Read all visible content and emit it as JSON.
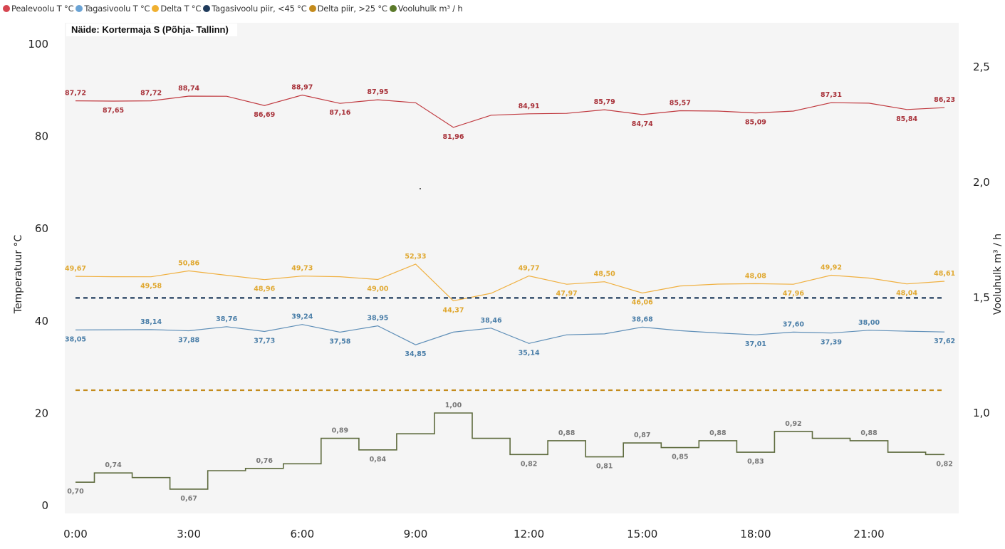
{
  "legend": [
    {
      "label": "Pealevoolu T °C",
      "color": "#d64550"
    },
    {
      "label": "Tagasivoolu T °C",
      "color": "#6aa3d5"
    },
    {
      "label": "Delta T °C",
      "color": "#f0b030"
    },
    {
      "label": "Tagasivoolu piir, <45 °C",
      "color": "#1f3b5c"
    },
    {
      "label": "Delta piir, >25 °C",
      "color": "#c48b1c"
    },
    {
      "label": "Vooluhulk m³ / h",
      "color": "#5b7a2a"
    }
  ],
  "chart_data": {
    "type": "line",
    "title": "Näide: Kortermaja S (Põhja- Tallinn)",
    "xlabel": "",
    "ylabel": "Temperatuur °C",
    "y2label": "Vooluhulk m³ / h",
    "x": [
      "0:00",
      "1:00",
      "2:00",
      "3:00",
      "4:00",
      "5:00",
      "6:00",
      "7:00",
      "8:00",
      "9:00",
      "10:00",
      "11:00",
      "12:00",
      "13:00",
      "14:00",
      "15:00",
      "16:00",
      "17:00",
      "18:00",
      "19:00",
      "20:00",
      "21:00",
      "22:00",
      "23:00"
    ],
    "xticks": [
      "0:00",
      "3:00",
      "6:00",
      "9:00",
      "12:00",
      "15:00",
      "18:00",
      "21:00"
    ],
    "ylim": [
      0,
      100
    ],
    "yticks": [
      0,
      20,
      40,
      60,
      80,
      100
    ],
    "y2lim": [
      0.57,
      2.58
    ],
    "y2ticks": [
      1.0,
      1.5,
      2.0,
      2.5
    ],
    "y2tick_labels": [
      "1,0",
      "1,5",
      "2,0",
      "2,5"
    ],
    "grid": false,
    "legend_position": "top-left",
    "series": [
      {
        "name": "Pealevoolu T °C",
        "axis": "left",
        "color": "#c0393f",
        "label_color": "#a8323a",
        "style": "line",
        "values": [
          87.72,
          87.65,
          87.72,
          88.74,
          88.7,
          86.69,
          88.97,
          87.16,
          87.95,
          87.3,
          81.96,
          84.6,
          84.91,
          85.0,
          85.79,
          84.74,
          85.57,
          85.5,
          85.09,
          85.5,
          87.31,
          87.2,
          85.84,
          86.23
        ],
        "labels": [
          {
            "i": 0,
            "text": "87,72",
            "pos": "above"
          },
          {
            "i": 1,
            "text": "87,65",
            "pos": "below"
          },
          {
            "i": 2,
            "text": "87,72",
            "pos": "above"
          },
          {
            "i": 3,
            "text": "88,74",
            "pos": "above"
          },
          {
            "i": 5,
            "text": "86,69",
            "pos": "below"
          },
          {
            "i": 6,
            "text": "88,97",
            "pos": "above"
          },
          {
            "i": 7,
            "text": "87,16",
            "pos": "below"
          },
          {
            "i": 8,
            "text": "87,95",
            "pos": "above"
          },
          {
            "i": 10,
            "text": "81,96",
            "pos": "below"
          },
          {
            "i": 12,
            "text": "84,91",
            "pos": "above"
          },
          {
            "i": 14,
            "text": "85,79",
            "pos": "above"
          },
          {
            "i": 15,
            "text": "84,74",
            "pos": "below"
          },
          {
            "i": 16,
            "text": "85,57",
            "pos": "above"
          },
          {
            "i": 18,
            "text": "85,09",
            "pos": "below"
          },
          {
            "i": 20,
            "text": "87,31",
            "pos": "above"
          },
          {
            "i": 22,
            "text": "85,84",
            "pos": "below"
          },
          {
            "i": 23,
            "text": "86,23",
            "pos": "above"
          }
        ]
      },
      {
        "name": "Tagasivoolu T °C",
        "axis": "left",
        "color": "#5f8fb8",
        "label_color": "#4a7ea8",
        "style": "line",
        "values": [
          38.05,
          38.1,
          38.14,
          37.88,
          38.76,
          37.73,
          39.24,
          37.58,
          38.95,
          34.85,
          37.6,
          38.46,
          35.14,
          37.0,
          37.2,
          38.68,
          37.9,
          37.4,
          37.01,
          37.6,
          37.39,
          38.0,
          37.8,
          37.62
        ],
        "labels": [
          {
            "i": 0,
            "text": "38,05",
            "pos": "below"
          },
          {
            "i": 2,
            "text": "38,14",
            "pos": "above"
          },
          {
            "i": 3,
            "text": "37,88",
            "pos": "below"
          },
          {
            "i": 4,
            "text": "38,76",
            "pos": "above"
          },
          {
            "i": 5,
            "text": "37,73",
            "pos": "below"
          },
          {
            "i": 6,
            "text": "39,24",
            "pos": "above"
          },
          {
            "i": 7,
            "text": "37,58",
            "pos": "below"
          },
          {
            "i": 8,
            "text": "38,95",
            "pos": "above"
          },
          {
            "i": 9,
            "text": "34,85",
            "pos": "below"
          },
          {
            "i": 11,
            "text": "38,46",
            "pos": "above"
          },
          {
            "i": 12,
            "text": "35,14",
            "pos": "below"
          },
          {
            "i": 15,
            "text": "38,68",
            "pos": "above"
          },
          {
            "i": 18,
            "text": "37,01",
            "pos": "below"
          },
          {
            "i": 19,
            "text": "37,60",
            "pos": "above"
          },
          {
            "i": 20,
            "text": "37,39",
            "pos": "below"
          },
          {
            "i": 21,
            "text": "38,00",
            "pos": "above"
          },
          {
            "i": 23,
            "text": "37,62",
            "pos": "below"
          }
        ]
      },
      {
        "name": "Delta T °C",
        "axis": "left",
        "color": "#f0b040",
        "label_color": "#e0a830",
        "style": "line",
        "values": [
          49.67,
          49.6,
          49.58,
          50.86,
          49.9,
          48.96,
          49.73,
          49.6,
          49.0,
          52.33,
          44.37,
          46.0,
          49.77,
          47.97,
          48.5,
          46.06,
          47.6,
          48.0,
          48.08,
          47.96,
          49.92,
          49.3,
          48.04,
          48.61
        ],
        "labels": [
          {
            "i": 0,
            "text": "49,67",
            "pos": "above"
          },
          {
            "i": 2,
            "text": "49,58",
            "pos": "below"
          },
          {
            "i": 3,
            "text": "50,86",
            "pos": "above"
          },
          {
            "i": 5,
            "text": "48,96",
            "pos": "below"
          },
          {
            "i": 6,
            "text": "49,73",
            "pos": "above"
          },
          {
            "i": 8,
            "text": "49,00",
            "pos": "below"
          },
          {
            "i": 9,
            "text": "52,33",
            "pos": "above"
          },
          {
            "i": 10,
            "text": "44,37",
            "pos": "below"
          },
          {
            "i": 12,
            "text": "49,77",
            "pos": "above"
          },
          {
            "i": 13,
            "text": "47,97",
            "pos": "below"
          },
          {
            "i": 14,
            "text": "48,50",
            "pos": "above"
          },
          {
            "i": 15,
            "text": "46,06",
            "pos": "below"
          },
          {
            "i": 18,
            "text": "48,08",
            "pos": "above"
          },
          {
            "i": 19,
            "text": "47,96",
            "pos": "below"
          },
          {
            "i": 20,
            "text": "49,92",
            "pos": "above"
          },
          {
            "i": 22,
            "text": "48,04",
            "pos": "below"
          },
          {
            "i": 23,
            "text": "48,61",
            "pos": "above"
          }
        ]
      },
      {
        "name": "Tagasivoolu piir, <45 °C",
        "axis": "left",
        "color": "#1f3b5c",
        "style": "dashed",
        "values": [
          45,
          45,
          45,
          45,
          45,
          45,
          45,
          45,
          45,
          45,
          45,
          45,
          45,
          45,
          45,
          45,
          45,
          45,
          45,
          45,
          45,
          45,
          45,
          45
        ]
      },
      {
        "name": "Delta piir, >25 °C",
        "axis": "left",
        "color": "#c48b1c",
        "style": "dashed",
        "values": [
          25,
          25,
          25,
          25,
          25,
          25,
          25,
          25,
          25,
          25,
          25,
          25,
          25,
          25,
          25,
          25,
          25,
          25,
          25,
          25,
          25,
          25,
          25,
          25
        ]
      },
      {
        "name": "Vooluhulk m³ / h",
        "axis": "right",
        "color": "#5e6b3e",
        "label_color": "#777777",
        "style": "step",
        "values": [
          0.7,
          0.74,
          0.72,
          0.67,
          0.75,
          0.76,
          0.78,
          0.89,
          0.84,
          0.91,
          1.0,
          0.89,
          0.82,
          0.88,
          0.81,
          0.87,
          0.85,
          0.88,
          0.83,
          0.92,
          0.89,
          0.88,
          0.83,
          0.82
        ],
        "labels": [
          {
            "i": 0,
            "text": "0,70",
            "pos": "below"
          },
          {
            "i": 1,
            "text": "0,74",
            "pos": "above"
          },
          {
            "i": 3,
            "text": "0,67",
            "pos": "below"
          },
          {
            "i": 5,
            "text": "0,76",
            "pos": "above"
          },
          {
            "i": 7,
            "text": "0,89",
            "pos": "above"
          },
          {
            "i": 8,
            "text": "0,84",
            "pos": "below"
          },
          {
            "i": 10,
            "text": "1,00",
            "pos": "above"
          },
          {
            "i": 12,
            "text": "0,82",
            "pos": "below"
          },
          {
            "i": 13,
            "text": "0,88",
            "pos": "above"
          },
          {
            "i": 14,
            "text": "0,81",
            "pos": "below"
          },
          {
            "i": 15,
            "text": "0,87",
            "pos": "above"
          },
          {
            "i": 16,
            "text": "0,85",
            "pos": "below"
          },
          {
            "i": 17,
            "text": "0,88",
            "pos": "above"
          },
          {
            "i": 18,
            "text": "0,83",
            "pos": "below"
          },
          {
            "i": 19,
            "text": "0,92",
            "pos": "above"
          },
          {
            "i": 21,
            "text": "0,88",
            "pos": "above"
          },
          {
            "i": 23,
            "text": "0,82",
            "pos": "below"
          }
        ]
      }
    ]
  }
}
